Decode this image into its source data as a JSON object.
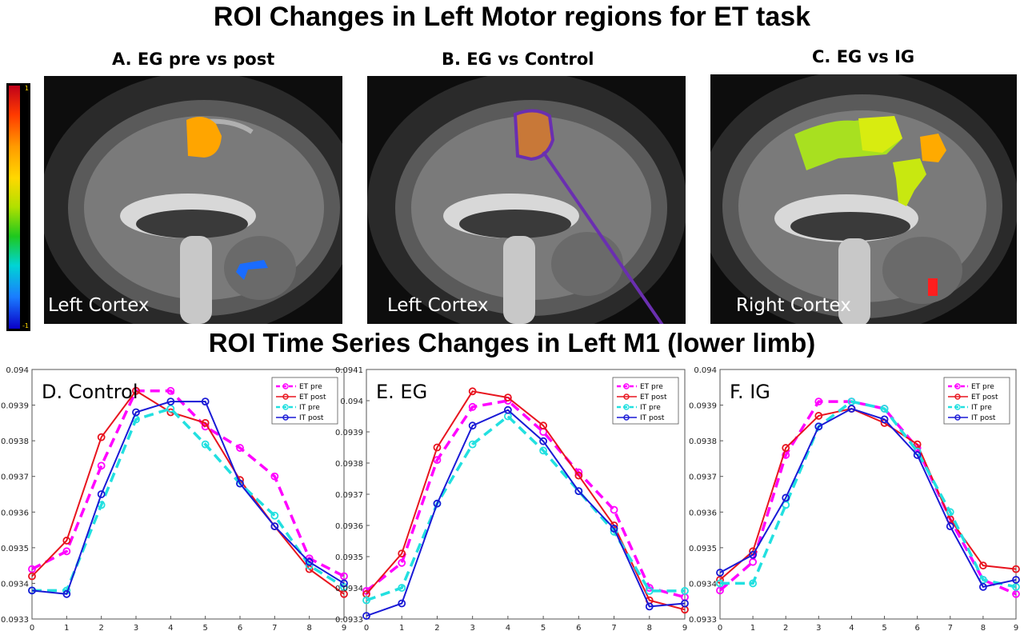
{
  "title": "ROI Changes in Left Motor regions for ET task",
  "ts_title": "ROI Time Series Changes in Left M1 (lower limb)",
  "panels": [
    {
      "label": "A. EG pre vs post",
      "cortex": "Left Cortex"
    },
    {
      "label": "B. EG vs Control",
      "cortex": "Left Cortex"
    },
    {
      "label": "C. EG vs IG",
      "cortex": "Right Cortex"
    }
  ],
  "colorbar": {
    "max": "1",
    "min": "-1"
  },
  "colors": {
    "et_pre": "#ff00ff",
    "et_post": "#e8141e",
    "it_pre": "#22e0e0",
    "it_post": "#1a1ad6"
  },
  "chart_data": [
    {
      "type": "line",
      "title": "D. Control",
      "x": [
        0,
        1,
        2,
        3,
        4,
        5,
        6,
        7,
        8,
        9
      ],
      "ylim": [
        0.0933,
        0.094
      ],
      "yticks": [
        "0.0933",
        "0.0934",
        "0.0935",
        "0.0936",
        "0.0937",
        "0.0938",
        "0.0939",
        "0.094"
      ],
      "legend_position": "top-right",
      "series": [
        {
          "name": "ET pre",
          "style": "dashed",
          "values": [
            0.09344,
            0.09349,
            0.09373,
            0.09394,
            0.09394,
            0.09384,
            0.09378,
            0.0937,
            0.09347,
            0.09342
          ]
        },
        {
          "name": "ET post",
          "style": "solid",
          "values": [
            0.09342,
            0.09352,
            0.09381,
            0.09394,
            0.09388,
            0.09385,
            0.09369,
            0.09356,
            0.09344,
            0.09337
          ]
        },
        {
          "name": "IT pre",
          "style": "dashed",
          "values": [
            0.09338,
            0.09338,
            0.09362,
            0.09386,
            0.09389,
            0.09379,
            0.09368,
            0.09359,
            0.09345,
            0.09339
          ]
        },
        {
          "name": "IT post",
          "style": "solid",
          "values": [
            0.09338,
            0.09337,
            0.09365,
            0.09388,
            0.09391,
            0.09391,
            0.09368,
            0.09356,
            0.09346,
            0.0934
          ]
        }
      ]
    },
    {
      "type": "line",
      "title": "E. EG",
      "x": [
        0,
        1,
        2,
        3,
        4,
        5,
        6,
        7,
        8,
        9
      ],
      "ylim": [
        0.0933,
        0.0941
      ],
      "yticks": [
        "0.0933",
        "0.0934",
        "0.0935",
        "0.0936",
        "0.0937",
        "0.0938",
        "0.0939",
        "0.094",
        "0.0941"
      ],
      "legend_position": "top-right",
      "series": [
        {
          "name": "ET pre",
          "style": "dashed",
          "values": [
            0.09339,
            0.09348,
            0.09381,
            0.09398,
            0.094,
            0.0939,
            0.09377,
            0.09365,
            0.0934,
            0.09337
          ]
        },
        {
          "name": "ET post",
          "style": "solid",
          "values": [
            0.09338,
            0.09351,
            0.09385,
            0.09403,
            0.09401,
            0.09392,
            0.09376,
            0.0936,
            0.09336,
            0.09333
          ]
        },
        {
          "name": "IT pre",
          "style": "dashed",
          "values": [
            0.09336,
            0.0934,
            0.09367,
            0.09386,
            0.09395,
            0.09384,
            0.09371,
            0.09358,
            0.09339,
            0.09339
          ]
        },
        {
          "name": "IT post",
          "style": "solid",
          "values": [
            0.09331,
            0.09335,
            0.09367,
            0.09392,
            0.09397,
            0.09387,
            0.09371,
            0.09359,
            0.09334,
            0.09335
          ]
        }
      ]
    },
    {
      "type": "line",
      "title": "F. IG",
      "x": [
        0,
        1,
        2,
        3,
        4,
        5,
        6,
        7,
        8,
        9
      ],
      "ylim": [
        0.0933,
        0.094
      ],
      "yticks": [
        "0.0933",
        "0.0934",
        "0.0935",
        "0.0936",
        "0.0937",
        "0.0938",
        "0.0939",
        "0.094"
      ],
      "legend_position": "top-right",
      "series": [
        {
          "name": "ET pre",
          "style": "dashed",
          "values": [
            0.09338,
            0.09346,
            0.09376,
            0.09391,
            0.09391,
            0.09389,
            0.09378,
            0.09358,
            0.09341,
            0.09337
          ]
        },
        {
          "name": "ET post",
          "style": "solid",
          "values": [
            0.09341,
            0.09349,
            0.09378,
            0.09387,
            0.09389,
            0.09385,
            0.09379,
            0.09358,
            0.09345,
            0.09344
          ]
        },
        {
          "name": "IT pre",
          "style": "dashed",
          "values": [
            0.0934,
            0.0934,
            0.09362,
            0.09384,
            0.09391,
            0.09389,
            0.09377,
            0.0936,
            0.09341,
            0.09339
          ]
        },
        {
          "name": "IT post",
          "style": "solid",
          "values": [
            0.09343,
            0.09348,
            0.09364,
            0.09384,
            0.09389,
            0.09386,
            0.09376,
            0.09356,
            0.09339,
            0.09341
          ]
        }
      ]
    }
  ]
}
